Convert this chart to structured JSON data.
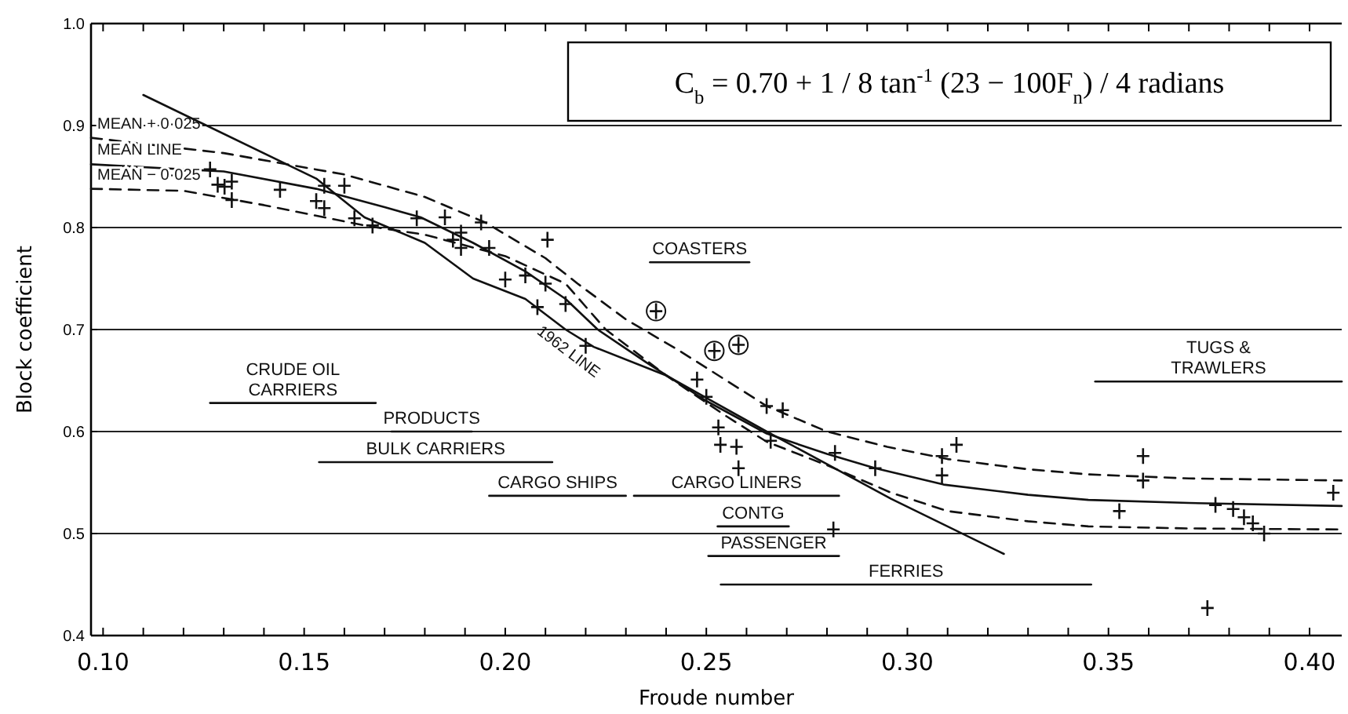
{
  "chart_data": {
    "type": "line",
    "xlabel": "Froude number",
    "ylabel": "Block coefficient",
    "xlim": [
      0.097,
      0.408
    ],
    "ylim": [
      0.4,
      1.0
    ],
    "xticks": [
      {
        "value": 0.1,
        "label": "0.10"
      },
      {
        "value": 0.11,
        "label": null
      },
      {
        "value": 0.12,
        "label": null
      },
      {
        "value": 0.13,
        "label": null
      },
      {
        "value": 0.14,
        "label": null
      },
      {
        "value": 0.15,
        "label": "0.15"
      },
      {
        "value": 0.16,
        "label": null
      },
      {
        "value": 0.17,
        "label": null
      },
      {
        "value": 0.18,
        "label": null
      },
      {
        "value": 0.19,
        "label": null
      },
      {
        "value": 0.2,
        "label": "0.20"
      },
      {
        "value": 0.21,
        "label": null
      },
      {
        "value": 0.22,
        "label": null
      },
      {
        "value": 0.23,
        "label": null
      },
      {
        "value": 0.24,
        "label": null
      },
      {
        "value": 0.25,
        "label": "0.25"
      },
      {
        "value": 0.26,
        "label": null
      },
      {
        "value": 0.27,
        "label": null
      },
      {
        "value": 0.28,
        "label": null
      },
      {
        "value": 0.29,
        "label": null
      },
      {
        "value": 0.3,
        "label": "0.30"
      },
      {
        "value": 0.31,
        "label": null
      },
      {
        "value": 0.32,
        "label": null
      },
      {
        "value": 0.33,
        "label": null
      },
      {
        "value": 0.34,
        "label": null
      },
      {
        "value": 0.35,
        "label": "0.35"
      },
      {
        "value": 0.36,
        "label": null
      },
      {
        "value": 0.37,
        "label": null
      },
      {
        "value": 0.38,
        "label": null
      },
      {
        "value": 0.39,
        "label": null
      },
      {
        "value": 0.4,
        "label": "0.40"
      }
    ],
    "yticks": [
      0.4,
      0.5,
      0.6,
      0.7,
      0.8,
      0.9,
      {
        "value": 1.0,
        "label": "1.0"
      }
    ],
    "grid": "y",
    "legend": false,
    "annotations": [
      "C$_{b}$ = 0.70 + 1 / 8 tan$^{-1}$ (23 − 100F$_{n}$) / 4 radians"
    ],
    "series": [
      {
        "name": "MEAN + 0·025",
        "color": "#111111",
        "line_style": "dashed",
        "marker": "none",
        "x": [
          0.097,
          0.13,
          0.16,
          0.18,
          0.195,
          0.21,
          0.218,
          0.23,
          0.243,
          0.255,
          0.265,
          0.28,
          0.295,
          0.31,
          0.33,
          0.345,
          0.37,
          0.408
        ],
        "values": [
          0.888,
          0.873,
          0.852,
          0.83,
          0.805,
          0.77,
          0.745,
          0.71,
          0.68,
          0.65,
          0.625,
          0.6,
          0.585,
          0.573,
          0.563,
          0.558,
          0.554,
          0.552
        ]
      },
      {
        "name": "MEAN LINE",
        "color": "#111111",
        "line_style": "solid",
        "marker": "none",
        "x": [
          0.097,
          0.13,
          0.153,
          0.17,
          0.179,
          0.192,
          0.205,
          0.215,
          0.223,
          0.235,
          0.25,
          0.265,
          0.28,
          0.292,
          0.309,
          0.33,
          0.345,
          0.37,
          0.408
        ],
        "values": [
          0.862,
          0.855,
          0.838,
          0.82,
          0.81,
          0.785,
          0.757,
          0.73,
          0.7,
          0.668,
          0.63,
          0.598,
          0.578,
          0.564,
          0.548,
          0.538,
          0.533,
          0.53,
          0.527
        ]
      },
      {
        "name": "MEAN − 0·025",
        "color": "#111111",
        "line_style": "dashed",
        "marker": "none",
        "x": [
          0.097,
          0.12,
          0.14,
          0.165,
          0.18,
          0.2,
          0.215,
          0.225,
          0.24,
          0.255,
          0.265,
          0.28,
          0.296,
          0.31,
          0.33,
          0.345,
          0.37,
          0.408
        ],
        "values": [
          0.838,
          0.836,
          0.822,
          0.802,
          0.793,
          0.772,
          0.745,
          0.7,
          0.655,
          0.615,
          0.59,
          0.567,
          0.54,
          0.522,
          0.512,
          0.507,
          0.505,
          0.504
        ]
      },
      {
        "name": "1962 LINE",
        "color": "#111111",
        "line_style": "solid",
        "marker": "none",
        "x": [
          0.11,
          0.153,
          0.165,
          0.18,
          0.192,
          0.205,
          0.215,
          0.222,
          0.24,
          0.265,
          0.296,
          0.324
        ],
        "values": [
          0.93,
          0.848,
          0.81,
          0.785,
          0.75,
          0.73,
          0.7,
          0.683,
          0.655,
          0.6,
          0.534,
          0.48
        ]
      },
      {
        "type": "scatter",
        "color": "#111111",
        "marker": "cross",
        "x": [
          0.1266,
          0.1285,
          0.1302,
          0.132,
          0.132,
          0.144,
          0.153,
          0.155,
          0.155,
          0.16,
          0.1625,
          0.167,
          0.178,
          0.185,
          0.187,
          0.189,
          0.189,
          0.194,
          0.196,
          0.2105,
          0.2,
          0.205,
          0.21,
          0.208,
          0.215,
          0.22,
          0.2477,
          0.25,
          0.265,
          0.269,
          0.253,
          0.2535,
          0.2575,
          0.266,
          0.258,
          0.282,
          0.292,
          0.3086,
          0.3122,
          0.3086,
          0.2816,
          0.3586,
          0.3586,
          0.3527,
          0.3766,
          0.381,
          0.3837,
          0.3859,
          0.3887,
          0.4059,
          0.3746
        ],
        "values": [
          0.857,
          0.842,
          0.84,
          0.845,
          0.827,
          0.837,
          0.826,
          0.841,
          0.819,
          0.841,
          0.809,
          0.802,
          0.809,
          0.81,
          0.788,
          0.78,
          0.795,
          0.805,
          0.78,
          0.788,
          0.749,
          0.753,
          0.745,
          0.722,
          0.725,
          0.684,
          0.651,
          0.634,
          0.625,
          0.621,
          0.604,
          0.587,
          0.585,
          0.591,
          0.564,
          0.579,
          0.564,
          0.576,
          0.587,
          0.557,
          0.504,
          0.576,
          0.552,
          0.522,
          0.528,
          0.524,
          0.516,
          0.51,
          0.5,
          0.54,
          0.427
        ]
      },
      {
        "type": "scatter",
        "color": "#111111",
        "marker": "circle",
        "x": [
          0.2375,
          0.252,
          0.258
        ],
        "values": [
          0.718,
          0.679,
          0.685
        ]
      },
      {
        "name": "CRUDE OIL CARRIERS",
        "color": "#111111",
        "line_style": "solid",
        "marker": "none",
        "x": [
          0.1266,
          0.1678
        ],
        "values": [
          0.628,
          0.628
        ]
      },
      {
        "name": "PRODUCTS",
        "color": "#111111",
        "line_style": "solid",
        "marker": "none",
        "x": [
          0.1717,
          0.1917
        ],
        "values": [
          0.6,
          0.6
        ]
      },
      {
        "name": "BULK CARRIERS",
        "color": "#111111",
        "line_style": "solid",
        "marker": "none",
        "x": [
          0.1537,
          0.2117
        ],
        "values": [
          0.57,
          0.57
        ]
      },
      {
        "name": "CARGO SHIPS",
        "color": "#111111",
        "line_style": "solid",
        "marker": "none",
        "x": [
          0.196,
          0.23
        ],
        "values": [
          0.537,
          0.537
        ]
      },
      {
        "name": "CARGO LINERS",
        "color": "#111111",
        "line_style": "solid",
        "marker": "none",
        "x": [
          0.232,
          0.283
        ],
        "values": [
          0.537,
          0.537
        ]
      },
      {
        "name": "CONTG",
        "color": "#111111",
        "line_style": "solid",
        "marker": "none",
        "x": [
          0.2528,
          0.2705
        ],
        "values": [
          0.507,
          0.507
        ]
      },
      {
        "name": "PASSENGER",
        "color": "#111111",
        "line_style": "solid",
        "marker": "none",
        "x": [
          0.2505,
          0.283
        ],
        "values": [
          0.478,
          0.478
        ]
      },
      {
        "name": "FERRIES",
        "color": "#111111",
        "line_style": "solid",
        "marker": "none",
        "x": [
          0.2536,
          0.3457
        ],
        "values": [
          0.45,
          0.45
        ]
      },
      {
        "name": "COASTERS",
        "color": "#111111",
        "line_style": "solid",
        "marker": "none",
        "x": [
          0.236,
          0.2607
        ],
        "values": [
          0.766,
          0.766
        ]
      },
      {
        "name": "TUGS & TRAWLERS",
        "color": "#111111",
        "line_style": "solid",
        "marker": "none",
        "x": [
          0.3467,
          0.408
        ],
        "values": [
          0.649,
          0.649
        ]
      }
    ]
  }
}
